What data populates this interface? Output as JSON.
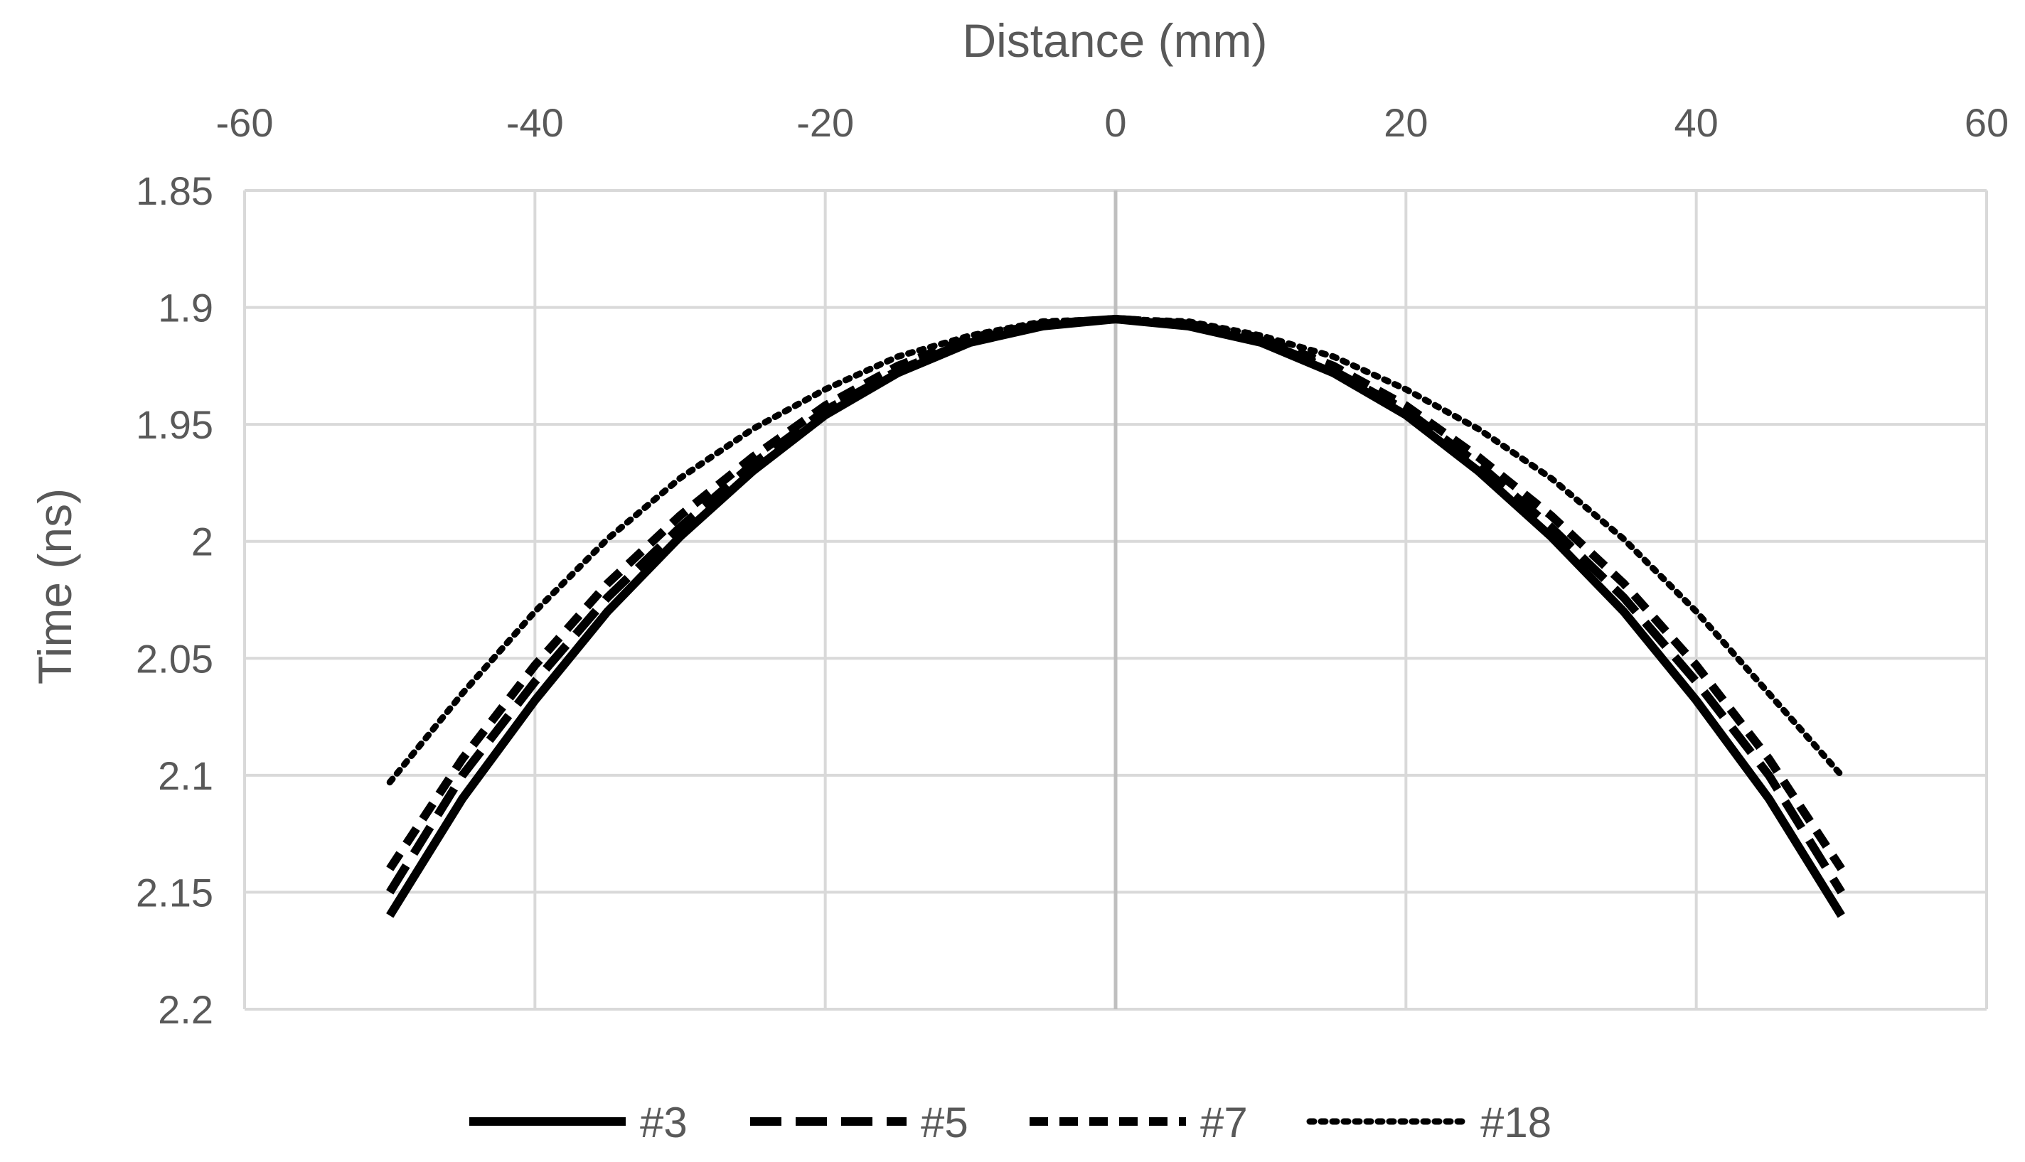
{
  "chart_data": {
    "type": "line",
    "xlabel": "Distance (mm)",
    "ylabel": "Time (ns)",
    "xlim": [
      -60,
      60
    ],
    "ylim": [
      1.85,
      2.2
    ],
    "y_axis_reversed": true,
    "x_axis_position": "top",
    "x_ticks": [
      -60,
      -40,
      -20,
      0,
      20,
      40,
      60
    ],
    "y_ticks": [
      1.85,
      1.9,
      1.95,
      2,
      2.05,
      2.1,
      2.15,
      2.2
    ],
    "x_tick_labels": [
      "-60",
      "-40",
      "-20",
      "0",
      "20",
      "40",
      "60"
    ],
    "y_tick_labels": [
      "1.85",
      "1.9",
      "1.95",
      "2",
      "2.05",
      "2.1",
      "2.15",
      "2.2"
    ],
    "grid": true,
    "legend_position": "bottom",
    "x": [
      -50,
      -45,
      -40,
      -35,
      -30,
      -25,
      -20,
      -15,
      -10,
      -5,
      0,
      5,
      10,
      15,
      20,
      25,
      30,
      35,
      40,
      45,
      50
    ],
    "series": [
      {
        "name": "#3",
        "style": "solid",
        "color": "#000000",
        "values": [
          2.16,
          2.11,
          2.068,
          2.03,
          1.998,
          1.97,
          1.946,
          1.928,
          1.915,
          1.908,
          1.905,
          1.908,
          1.915,
          1.928,
          1.946,
          1.97,
          1.998,
          2.03,
          2.068,
          2.11,
          2.16
        ]
      },
      {
        "name": "#5",
        "style": "long-dash",
        "color": "#000000",
        "values": [
          2.15,
          2.1,
          2.06,
          2.024,
          1.994,
          1.967,
          1.944,
          1.927,
          1.914,
          1.907,
          1.905,
          1.907,
          1.914,
          1.927,
          1.944,
          1.967,
          1.994,
          2.024,
          2.06,
          2.1,
          2.15
        ]
      },
      {
        "name": "#7",
        "style": "short-dash",
        "color": "#000000",
        "values": [
          2.14,
          2.093,
          2.053,
          2.018,
          1.989,
          1.964,
          1.942,
          1.925,
          1.913,
          1.907,
          1.905,
          1.907,
          1.913,
          1.925,
          1.942,
          1.964,
          1.989,
          2.018,
          2.053,
          2.093,
          2.14
        ]
      },
      {
        "name": "#18",
        "style": "dotted",
        "color": "#000000",
        "values": [
          2.103,
          2.065,
          2.03,
          1.999,
          1.973,
          1.952,
          1.935,
          1.921,
          1.912,
          1.906,
          1.905,
          1.906,
          1.912,
          1.921,
          1.935,
          1.952,
          1.973,
          1.999,
          2.03,
          2.065,
          2.1
        ]
      }
    ]
  },
  "colors": {
    "gridline": "#d9d9d9",
    "zero_line": "#bfbfbf",
    "text": "#595959",
    "series": "#000000"
  }
}
